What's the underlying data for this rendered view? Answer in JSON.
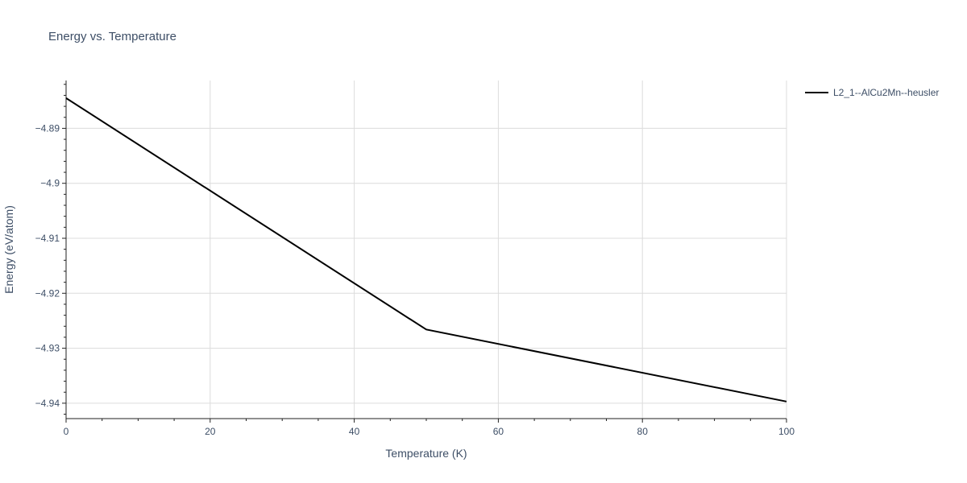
{
  "chart_data": {
    "type": "line",
    "title": "Energy vs. Temperature",
    "xlabel": "Temperature (K)",
    "ylabel": "Energy (eV/atom)",
    "xlim": [
      0,
      100
    ],
    "ylim": [
      -4.9428,
      -4.8813
    ],
    "x_ticks": [
      0,
      20,
      40,
      60,
      80,
      100
    ],
    "x_tick_labels": [
      "0",
      "20",
      "40",
      "60",
      "80",
      "100"
    ],
    "y_ticks": [
      -4.89,
      -4.9,
      -4.91,
      -4.92,
      -4.93,
      -4.94
    ],
    "y_tick_labels": [
      "−4.89",
      "−4.9",
      "−4.91",
      "−4.92",
      "−4.93",
      "−4.94"
    ],
    "grid": true,
    "legend_position": "top-right",
    "series": [
      {
        "name": "L2_1--AlCu2Mn--heusler",
        "color": "#000000",
        "x": [
          0,
          50,
          100
        ],
        "y": [
          -4.8845,
          -4.9266,
          -4.9397
        ]
      }
    ]
  }
}
